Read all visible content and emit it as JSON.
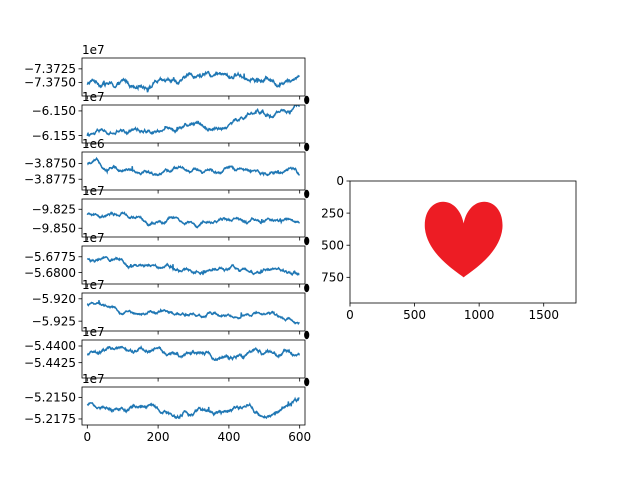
{
  "chart_data": [
    {
      "type": "line",
      "title": "",
      "offset_label": "1e7",
      "ylim": [
        -7.3775,
        -7.3705
      ],
      "yticks": [
        -7.3725,
        -7.375
      ],
      "ytick_labels": [
        "−7.3725",
        "−7.3750"
      ],
      "start": -7.3755,
      "slope": 3.5e-06,
      "amp": 0.0022,
      "color": "#1f77b4"
    },
    {
      "type": "line",
      "title": "",
      "offset_label": "1e7",
      "ylim": [
        -6.1565,
        -6.1488
      ],
      "yticks": [
        -6.15,
        -6.155
      ],
      "ytick_labels": [
        "−6.150",
        "−6.155"
      ],
      "start": -6.1555,
      "slope": 9e-06,
      "amp": 0.002,
      "color": "#1f77b4"
    },
    {
      "type": "line",
      "title": "",
      "offset_label": "1e6",
      "ylim": [
        -3.8792,
        -3.8732
      ],
      "yticks": [
        -3.875,
        -3.8775
      ],
      "ytick_labels": [
        "−3.8750",
        "−3.8775"
      ],
      "start": -3.8752,
      "slope": -3e-06,
      "amp": 0.0014,
      "color": "#1f77b4"
    },
    {
      "type": "line",
      "title": "",
      "offset_label": "1e7",
      "ylim": [
        -9.8615,
        -9.8115
      ],
      "yticks": [
        -9.825,
        -9.85
      ],
      "ytick_labels": [
        "−9.825",
        "−9.850"
      ],
      "start": -9.833,
      "slope": -2e-05,
      "amp": 0.011,
      "color": "#1f77b4"
    },
    {
      "type": "line",
      "title": "",
      "offset_label": "1e7",
      "ylim": [
        -5.6818,
        -5.6758
      ],
      "yticks": [
        -5.6775,
        -5.68
      ],
      "ytick_labels": [
        "−5.6775",
        "−5.6800"
      ],
      "start": -5.6778,
      "slope": -3e-06,
      "amp": 0.0014,
      "color": "#1f77b4"
    },
    {
      "type": "line",
      "title": "",
      "offset_label": "1e7",
      "ylim": [
        -5.9272,
        -5.9187
      ],
      "yticks": [
        -5.92,
        -5.925
      ],
      "ytick_labels": [
        "−5.920",
        "−5.925"
      ],
      "start": -5.921,
      "slope": -7.2e-06,
      "amp": 0.0017,
      "color": "#1f77b4"
    },
    {
      "type": "line",
      "title": "",
      "offset_label": "1e7",
      "ylim": [
        -5.4448,
        -5.4391
      ],
      "yticks": [
        -5.44,
        -5.4425
      ],
      "ytick_labels": [
        "−5.4400",
        "−5.4425"
      ],
      "start": -5.4412,
      "slope": 0.0,
      "amp": 0.0015,
      "color": "#1f77b4"
    },
    {
      "type": "line",
      "title": "",
      "offset_label": "1e7",
      "ylim": [
        -5.2182,
        -5.2138
      ],
      "yticks": [
        -5.215,
        -5.2175
      ],
      "ytick_labels": [
        "−5.2150",
        "−5.2175"
      ],
      "start": -5.2163,
      "slope": 0.0,
      "amp": 0.0012,
      "color": "#1f77b4"
    }
  ],
  "shared_x": {
    "xlim": [
      -15,
      615
    ],
    "n_points": 600,
    "xticks": [
      0,
      200,
      400,
      600
    ],
    "xtick_labels": [
      "0",
      "200",
      "400",
      "600"
    ]
  },
  "image_panel": {
    "type": "image",
    "xlim": [
      0,
      1750
    ],
    "ylim": [
      950,
      0
    ],
    "xticks": [
      0,
      500,
      1000,
      1500
    ],
    "xtick_labels": [
      "0",
      "500",
      "1000",
      "1500"
    ],
    "yticks": [
      0,
      250,
      500,
      750
    ],
    "ytick_labels": [
      "0",
      "250",
      "500",
      "750"
    ],
    "heart_color": "#ed1c24"
  }
}
